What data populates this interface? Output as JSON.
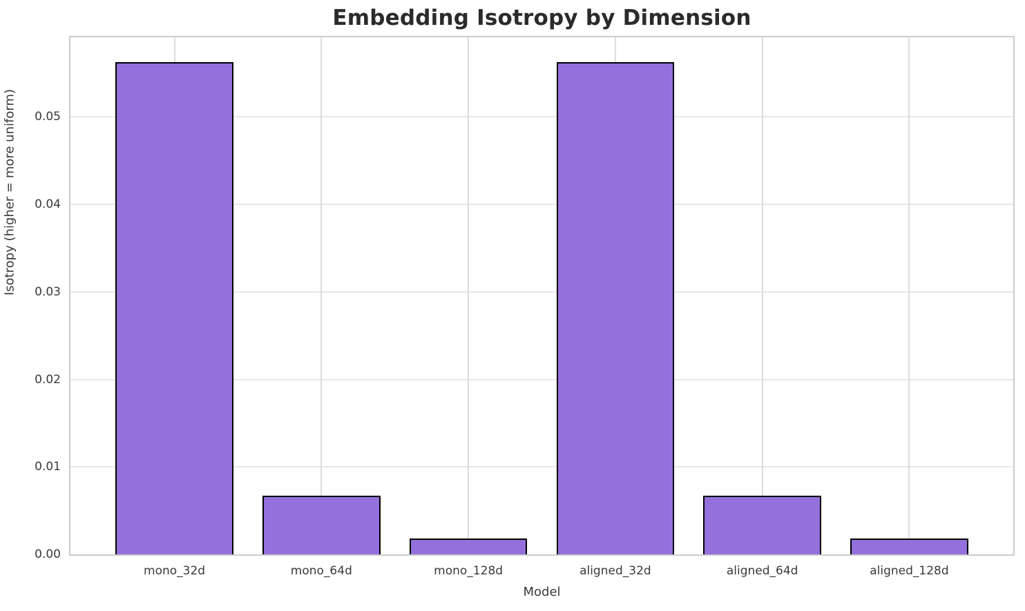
{
  "chart_data": {
    "type": "bar",
    "title": "Embedding Isotropy by Dimension",
    "xlabel": "Model",
    "ylabel": "Isotropy (higher = more uniform)",
    "categories": [
      "mono_32d",
      "mono_64d",
      "mono_128d",
      "aligned_32d",
      "aligned_64d",
      "aligned_128d"
    ],
    "values": [
      0.0563,
      0.0067,
      0.0018,
      0.0563,
      0.0067,
      0.0018
    ],
    "ylim": [
      0,
      0.0591
    ],
    "yticks": [
      0,
      0.01,
      0.02,
      0.03,
      0.04,
      0.05
    ],
    "ytick_labels": [
      "0.00",
      "0.01",
      "0.02",
      "0.03",
      "0.04",
      "0.05"
    ],
    "grid": true,
    "legend": false,
    "bar_color": "#9370DB",
    "bar_edge_color": "#000000",
    "grid_color": "#e7e7e7",
    "vgrid_color": "#dcdcdc",
    "spine_color": "#cccccc",
    "background_color": "#ffffff",
    "text_color": "#3a3a3a",
    "title_color": "#2b2b2b"
  }
}
